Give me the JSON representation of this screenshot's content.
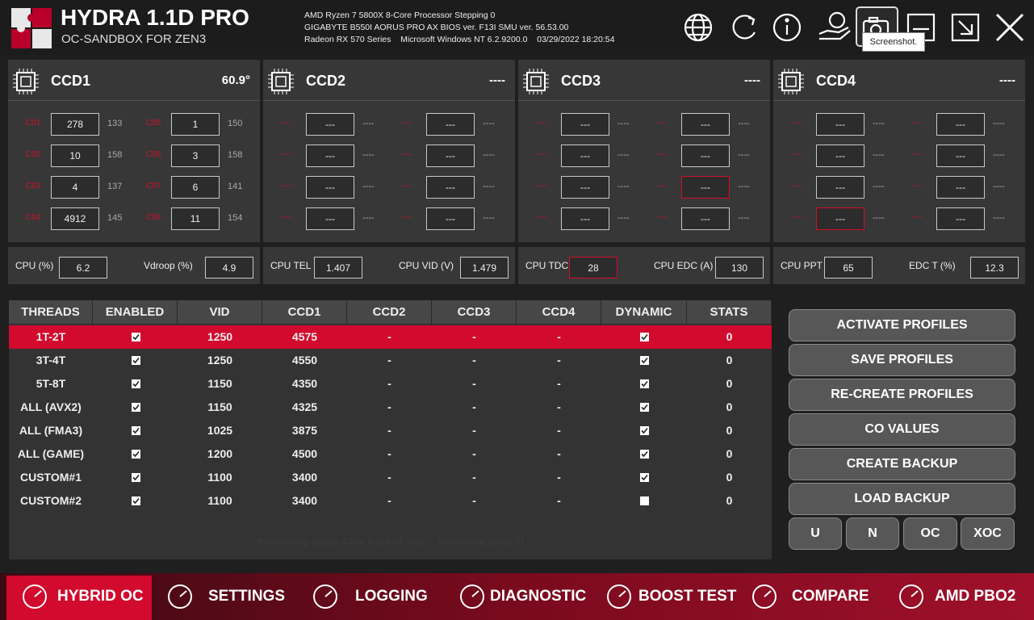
{
  "header": {
    "title": "HYDRA 1.1D PRO",
    "subtitle": "OC-SANDBOX FOR ZEN3",
    "system_info": [
      "AMD Ryzen 7 5800X 8-Core Processor Stepping 0",
      "GIGABYTE B550I AORUS PRO AX BIOS ver. F13I SMU ver. 56.53.00",
      "Radeon RX 570 Series    Microsoft Windows NT 6.2.9200.0    03/29/2022 18:20:54"
    ],
    "tooltip": "Screenshot."
  },
  "ccds": [
    {
      "name": "CCD1",
      "temp": "60.9°",
      "cores": [
        {
          "label": "C01",
          "value": "278",
          "freq": "133"
        },
        {
          "label": "C02",
          "value": "10",
          "freq": "158"
        },
        {
          "label": "C03",
          "value": "4",
          "freq": "137"
        },
        {
          "label": "C04",
          "value": "4912",
          "freq": "145"
        },
        {
          "label": "C05",
          "value": "1",
          "freq": "150"
        },
        {
          "label": "C06",
          "value": "3",
          "freq": "158"
        },
        {
          "label": "C07",
          "value": "6",
          "freq": "141"
        },
        {
          "label": "C08",
          "value": "11",
          "freq": "154"
        }
      ]
    },
    {
      "name": "CCD2",
      "temp": "----",
      "cores": [
        {
          "label": "----",
          "value": "---",
          "freq": "----"
        },
        {
          "label": "----",
          "value": "---",
          "freq": "----"
        },
        {
          "label": "----",
          "value": "---",
          "freq": "----"
        },
        {
          "label": "----",
          "value": "---",
          "freq": "----"
        },
        {
          "label": "----",
          "value": "---",
          "freq": "----"
        },
        {
          "label": "----",
          "value": "---",
          "freq": "----"
        },
        {
          "label": "----",
          "value": "---",
          "freq": "----"
        },
        {
          "label": "----",
          "value": "---",
          "freq": "----"
        }
      ]
    },
    {
      "name": "CCD3",
      "temp": "----",
      "cores": [
        {
          "label": "----",
          "value": "---",
          "freq": "----"
        },
        {
          "label": "----",
          "value": "---",
          "freq": "----"
        },
        {
          "label": "----",
          "value": "---",
          "freq": "----"
        },
        {
          "label": "----",
          "value": "---",
          "freq": "----"
        },
        {
          "label": "----",
          "value": "---",
          "freq": "----"
        },
        {
          "label": "----",
          "value": "---",
          "freq": "----"
        },
        {
          "label": "----",
          "value": "---",
          "freq": "----"
        },
        {
          "label": "----",
          "value": "---",
          "freq": "----"
        }
      ]
    },
    {
      "name": "CCD4",
      "temp": "----",
      "cores": [
        {
          "label": "----",
          "value": "---",
          "freq": "----"
        },
        {
          "label": "----",
          "value": "---",
          "freq": "----"
        },
        {
          "label": "----",
          "value": "---",
          "freq": "----"
        },
        {
          "label": "----",
          "value": "---",
          "freq": "----"
        },
        {
          "label": "----",
          "value": "---",
          "freq": "----"
        },
        {
          "label": "----",
          "value": "---",
          "freq": "----"
        },
        {
          "label": "----",
          "value": "---",
          "freq": "----"
        },
        {
          "label": "----",
          "value": "---",
          "freq": "----"
        }
      ]
    }
  ],
  "stats": [
    [
      {
        "label": "CPU (%)",
        "value": "6.2"
      },
      {
        "label": "Vdroop (%)",
        "value": "4.9"
      }
    ],
    [
      {
        "label": "CPU TEL (V)",
        "value": "1.407"
      },
      {
        "label": "CPU VID (V)",
        "value": "1.479"
      }
    ],
    [
      {
        "label": "CPU TDC (A)",
        "value": "28"
      },
      {
        "label": "CPU EDC (A)",
        "value": "130"
      }
    ],
    [
      {
        "label": "CPU PPT (W)",
        "value": "65"
      },
      {
        "label": "EDC T (%)",
        "value": "12.3"
      }
    ]
  ],
  "table": {
    "headers": [
      "THREADS",
      "ENABLED",
      "VID",
      "CCD1",
      "CCD2",
      "CCD3",
      "CCD4",
      "DYNAMIC",
      "STATS"
    ],
    "rows": [
      [
        "1T-2T",
        true,
        1250,
        4575,
        "-",
        "-",
        "-",
        true,
        0
      ],
      [
        "3T-4T",
        true,
        1250,
        4550,
        "-",
        "-",
        "-",
        true,
        0
      ],
      [
        "5T-8T",
        true,
        1150,
        4350,
        "-",
        "-",
        "-",
        true,
        0
      ],
      [
        "ALL (AVX2)",
        true,
        1150,
        4325,
        "-",
        "-",
        "-",
        true,
        0
      ],
      [
        "ALL (FMA3)",
        true,
        1025,
        3875,
        "-",
        "-",
        "-",
        true,
        0
      ],
      [
        "ALL (GAME)",
        true,
        1200,
        4500,
        "-",
        "-",
        "-",
        true,
        0
      ],
      [
        "CUSTOM#1",
        true,
        1100,
        3400,
        "-",
        "-",
        "-",
        true,
        0
      ],
      [
        "CUSTOM#2",
        true,
        1100,
        3400,
        "-",
        "-",
        "-",
        false,
        0
      ]
    ]
  },
  "status": "Performing Single Core Ranked Test ... Rendering (Best 5)",
  "buttons": [
    "ACTIVATE PROFILES",
    "SAVE PROFILES",
    "RE-CREATE PROFILES",
    "CO VALUES",
    "CREATE BACKUP",
    "LOAD BACKUP"
  ],
  "mode_buttons": [
    "U",
    "N",
    "OC",
    "XOC"
  ],
  "nav": [
    "HYBRID OC",
    "SETTINGS",
    "LOGGING",
    "DIAGNOSTIC",
    "BOOST TEST",
    "COMPARE",
    "AMD PBO2"
  ]
}
